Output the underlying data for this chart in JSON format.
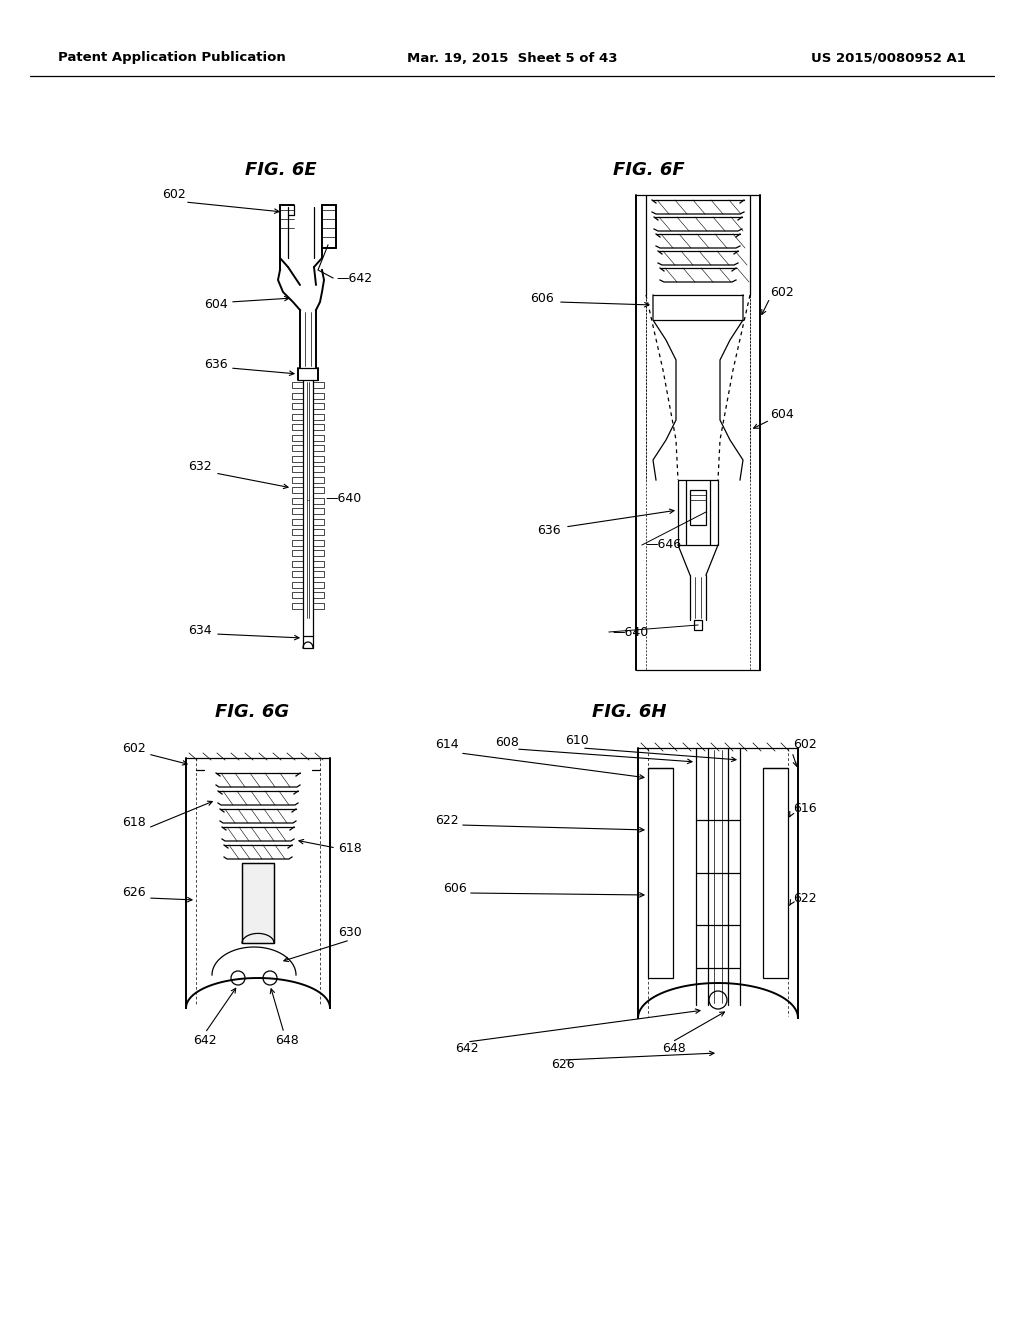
{
  "bg_color": "#ffffff",
  "header_left": "Patent Application Publication",
  "header_mid": "Mar. 19, 2015  Sheet 5 of 43",
  "header_right": "US 2015/0080952 A1",
  "fig6e_title": "FIG. 6E",
  "fig6f_title": "FIG. 6F",
  "fig6g_title": "FIG. 6G",
  "fig6h_title": "FIG. 6H"
}
